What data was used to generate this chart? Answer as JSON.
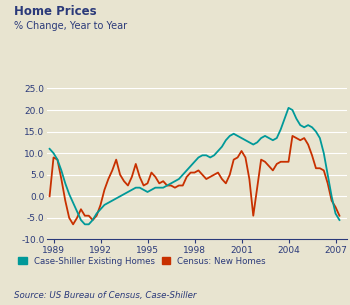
{
  "title": "Home Prices",
  "subtitle": "% Change, Year to Year",
  "source": "Source: US Bureau of Census, Case-Shiller",
  "background_color": "#e8e4d0",
  "plot_bg_color": "#e8e4d0",
  "title_color": "#2b3a7a",
  "label_color": "#2b3a7a",
  "teal_color": "#009999",
  "orange_color": "#c83000",
  "ylim": [
    -10.0,
    25.0
  ],
  "yticks": [
    -10.0,
    -5.0,
    0.0,
    5.0,
    10.0,
    15.0,
    20.0,
    25.0
  ],
  "xtick_years": [
    1989,
    1992,
    1995,
    1998,
    2001,
    2004,
    2007
  ],
  "legend_label_teal": "Case-Shiller Existing Homes",
  "legend_label_orange": "Census: New Homes",
  "xlim": [
    1988.6,
    2007.7
  ],
  "case_shiller": {
    "x": [
      1988.75,
      1989.0,
      1989.25,
      1989.5,
      1989.75,
      1990.0,
      1990.25,
      1990.5,
      1990.75,
      1991.0,
      1991.25,
      1991.5,
      1991.75,
      1992.0,
      1992.25,
      1992.5,
      1992.75,
      1993.0,
      1993.25,
      1993.5,
      1993.75,
      1994.0,
      1994.25,
      1994.5,
      1994.75,
      1995.0,
      1995.25,
      1995.5,
      1995.75,
      1996.0,
      1996.25,
      1996.5,
      1996.75,
      1997.0,
      1997.25,
      1997.5,
      1997.75,
      1998.0,
      1998.25,
      1998.5,
      1998.75,
      1999.0,
      1999.25,
      1999.5,
      1999.75,
      2000.0,
      2000.25,
      2000.5,
      2000.75,
      2001.0,
      2001.25,
      2001.5,
      2001.75,
      2002.0,
      2002.25,
      2002.5,
      2002.75,
      2003.0,
      2003.25,
      2003.5,
      2003.75,
      2004.0,
      2004.25,
      2004.5,
      2004.75,
      2005.0,
      2005.25,
      2005.5,
      2005.75,
      2006.0,
      2006.25,
      2006.5,
      2006.75,
      2007.0,
      2007.25
    ],
    "y": [
      11.0,
      10.0,
      8.5,
      6.0,
      3.0,
      0.5,
      -1.5,
      -3.5,
      -5.5,
      -6.5,
      -6.5,
      -5.5,
      -4.0,
      -3.0,
      -2.0,
      -1.5,
      -1.0,
      -0.5,
      0.0,
      0.5,
      1.0,
      1.5,
      2.0,
      2.0,
      1.5,
      1.0,
      1.5,
      2.0,
      2.0,
      2.0,
      2.5,
      3.0,
      3.5,
      4.0,
      5.0,
      6.0,
      7.0,
      8.0,
      9.0,
      9.5,
      9.5,
      9.0,
      9.5,
      10.5,
      11.5,
      13.0,
      14.0,
      14.5,
      14.0,
      13.5,
      13.0,
      12.5,
      12.0,
      12.5,
      13.5,
      14.0,
      13.5,
      13.0,
      13.5,
      15.5,
      18.0,
      20.5,
      20.0,
      18.0,
      16.5,
      16.0,
      16.5,
      16.0,
      15.0,
      13.5,
      10.0,
      5.0,
      0.0,
      -4.0,
      -5.5
    ]
  },
  "census": {
    "x": [
      1988.75,
      1989.0,
      1989.25,
      1989.5,
      1989.75,
      1990.0,
      1990.25,
      1990.5,
      1990.75,
      1991.0,
      1991.25,
      1991.5,
      1991.75,
      1992.0,
      1992.25,
      1992.5,
      1992.75,
      1993.0,
      1993.25,
      1993.5,
      1993.75,
      1994.0,
      1994.25,
      1994.5,
      1994.75,
      1995.0,
      1995.25,
      1995.5,
      1995.75,
      1996.0,
      1996.25,
      1996.5,
      1996.75,
      1997.0,
      1997.25,
      1997.5,
      1997.75,
      1998.0,
      1998.25,
      1998.5,
      1998.75,
      1999.0,
      1999.25,
      1999.5,
      1999.75,
      2000.0,
      2000.25,
      2000.5,
      2000.75,
      2001.0,
      2001.25,
      2001.5,
      2001.75,
      2002.0,
      2002.25,
      2002.5,
      2002.75,
      2003.0,
      2003.25,
      2003.5,
      2003.75,
      2004.0,
      2004.25,
      2004.5,
      2004.75,
      2005.0,
      2005.25,
      2005.5,
      2005.75,
      2006.0,
      2006.25,
      2006.5,
      2006.75,
      2007.0,
      2007.25
    ],
    "y": [
      0.0,
      9.0,
      8.5,
      4.0,
      -1.0,
      -5.0,
      -6.5,
      -5.0,
      -3.0,
      -4.5,
      -4.5,
      -5.5,
      -4.5,
      -2.0,
      1.5,
      4.0,
      6.0,
      8.5,
      5.0,
      3.5,
      2.5,
      4.5,
      7.5,
      4.5,
      2.5,
      3.0,
      5.5,
      4.5,
      3.0,
      3.5,
      2.5,
      2.5,
      2.0,
      2.5,
      2.5,
      4.5,
      5.5,
      5.5,
      6.0,
      5.0,
      4.0,
      4.5,
      5.0,
      5.5,
      4.0,
      3.0,
      5.0,
      8.5,
      9.0,
      10.5,
      9.0,
      4.0,
      -4.5,
      2.0,
      8.5,
      8.0,
      7.0,
      6.0,
      7.5,
      8.0,
      8.0,
      8.0,
      14.0,
      13.5,
      13.0,
      13.5,
      12.0,
      9.5,
      6.5,
      6.5,
      6.0,
      3.0,
      -1.0,
      -2.5,
      -4.5
    ]
  }
}
